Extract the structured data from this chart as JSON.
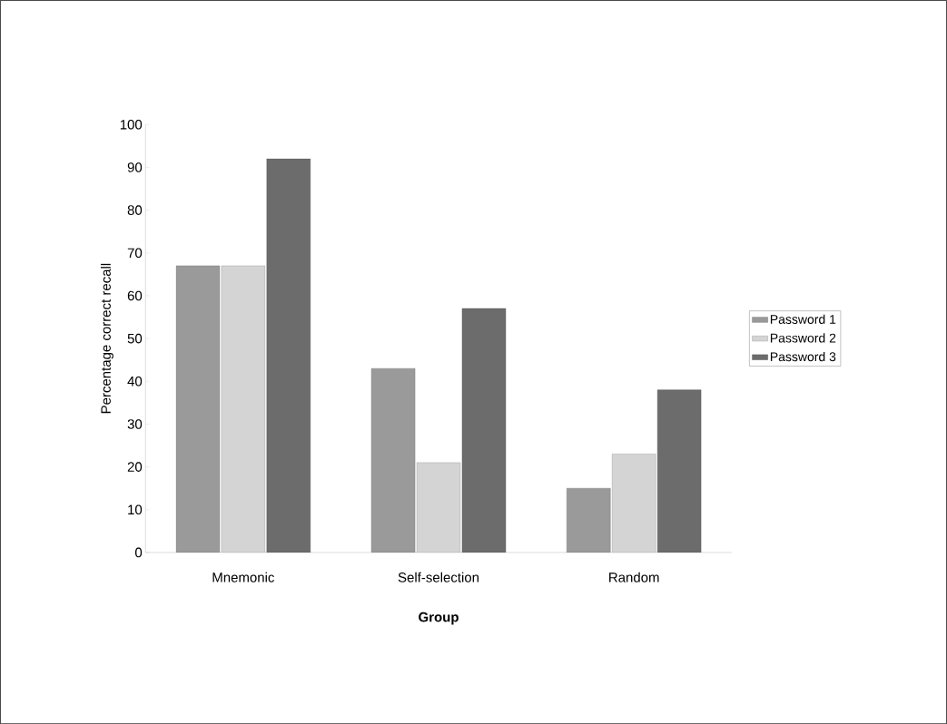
{
  "chart_data": {
    "type": "bar",
    "xlabel": "Group",
    "ylabel": "Percentage correct recall",
    "categories": [
      "Mnemonic",
      "Self-selection",
      "Random"
    ],
    "series": [
      {
        "name": "Password 1",
        "color": "#9a9a9a",
        "values": [
          67,
          43,
          15
        ]
      },
      {
        "name": "Password 2",
        "color": "#d4d4d4",
        "values": [
          67,
          21,
          23
        ]
      },
      {
        "name": "Password 3",
        "color": "#6c6c6c",
        "values": [
          92,
          57,
          38
        ]
      }
    ],
    "ylim": [
      0,
      100
    ],
    "yticks": [
      0,
      10,
      20,
      30,
      40,
      50,
      60,
      70,
      80,
      90,
      100
    ],
    "grid": false,
    "legend": "right"
  }
}
